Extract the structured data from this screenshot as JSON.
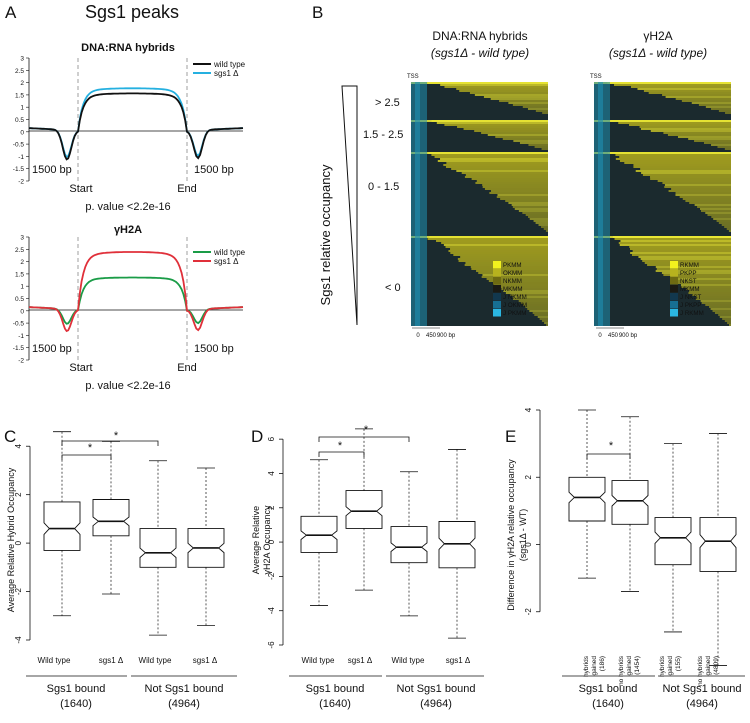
{
  "figure": {
    "panels": {
      "A": {
        "letter": "A",
        "title": "Sgs1 peaks",
        "top": {
          "title": "DNA:RNA hybrids",
          "legend": [
            "wild type",
            "sgs1 Δ"
          ],
          "y_ticks": [
            "3",
            "2.5",
            "2",
            "1.5",
            "1",
            "0.5",
            "0",
            "-0.5",
            "-1",
            "-1.5",
            "-2"
          ],
          "flank_label": "1500 bp",
          "start_label": "Start",
          "end_label": "End",
          "pvalue": "p. value <2.2e-16"
        },
        "bottom": {
          "title": "γH2A",
          "legend": [
            "wild type",
            "sgs1 Δ"
          ],
          "y_ticks": [
            "3",
            "2.5",
            "2",
            "1.5",
            "1",
            "0.5",
            "0",
            "-0.5",
            "-1",
            "-1.5",
            "-2"
          ],
          "flank_label": "1500 bp",
          "start_label": "Start",
          "end_label": "End",
          "pvalue": "p. value <2.2e-16"
        }
      },
      "B": {
        "letter": "B",
        "y_axis_label": "Sgs1 relative occupancy",
        "groups": [
          "> 2.5",
          "1.5 - 2.5",
          "0 - 1.5",
          "< 0"
        ],
        "heatmap1": {
          "title_line1": "DNA:RNA hybrids",
          "title_line2": "(sgs1Δ - wild type)",
          "tss": "TSS",
          "legend": [
            "PKMM",
            "OKMM",
            "NKMM",
            "MKMM",
            "J NKMM",
            "J OKMM",
            "J PKMM"
          ],
          "x_ticks": [
            "0",
            "450",
            "900 bp"
          ]
        },
        "heatmap2": {
          "title_line1": "γH2A",
          "title_line2": "(sgs1Δ - wild type)",
          "tss": "TSS",
          "legend": [
            "RKMM",
            "PKPP",
            "NKST",
            "MKMM",
            "J NKST",
            "J PKPP",
            "J RKMM"
          ],
          "x_ticks": [
            "0",
            "450",
            "900 bp"
          ]
        },
        "legend_colors": [
          "#f2f21e",
          "#b7b21e",
          "#6e6a12",
          "#1a1a14",
          "#12384e",
          "#176f93",
          "#2bb7e3"
        ]
      },
      "C": {
        "letter": "C",
        "y_label": "Average Relative Hybrid Occupancy",
        "star": "*",
        "x_labels": [
          "Wild type",
          "sgs1 Δ",
          "Wild type",
          "sgs1 Δ"
        ],
        "group_labels": [
          "Sgs1 bound",
          "Not Sgs1 bound"
        ],
        "group_counts": [
          "(1640)",
          "(4964)"
        ]
      },
      "D": {
        "letter": "D",
        "y_label_line1": "Average Relative",
        "y_label_line2": "γH2A Occupancy",
        "star": "*",
        "x_labels": [
          "Wild type",
          "sgs1 Δ",
          "Wild type",
          "sgs1 Δ"
        ],
        "group_labels": [
          "Sgs1 bound",
          "Not Sgs1 bound"
        ],
        "group_counts": [
          "(1640)",
          "(4964)"
        ]
      },
      "E": {
        "letter": "E",
        "y_label_line1": "Difference in γH2A relative occupancy",
        "y_label_line2": "(sgs1Δ - WT)",
        "star": "*",
        "box_labels": [
          [
            "hybrids",
            "gained",
            "(186)"
          ],
          [
            "no hybrids",
            "gained",
            "(1454)"
          ],
          [
            "hybrids",
            "gained",
            "(155)"
          ],
          [
            "no hybrids",
            "gained",
            "(4809)"
          ]
        ],
        "group_labels": [
          "Sgs1 bound",
          "Not Sgs1 bound"
        ],
        "group_counts": [
          "(1640)",
          "(4964)"
        ]
      }
    }
  },
  "chart_data": [
    {
      "type": "line",
      "title": "DNA:RNA hybrids",
      "xlabel": "",
      "ylabel": "",
      "ylim": [
        -2,
        3
      ],
      "series": [
        {
          "name": "wild type",
          "color": "#111111",
          "peak": 1.5,
          "dip": -1.2
        },
        {
          "name": "sgs1 Δ",
          "color": "#25b0e0",
          "peak": 1.7,
          "dip": -1.1
        }
      ]
    },
    {
      "type": "line",
      "title": "γH2A",
      "xlabel": "",
      "ylabel": "",
      "ylim": [
        -2,
        3
      ],
      "series": [
        {
          "name": "wild type",
          "color": "#1a9c47",
          "peak": 1.3,
          "dip": -0.6
        },
        {
          "name": "sgs1 Δ",
          "color": "#e0303a",
          "peak": 2.3,
          "dip": -0.9
        }
      ]
    },
    {
      "type": "box",
      "title": "C",
      "ylabel": "Average Relative Hybrid Occupancy",
      "ylim": [
        -4,
        5
      ],
      "y_ticks": [
        -4,
        -2,
        0,
        2,
        4
      ],
      "categories": [
        "Wild type",
        "sgs1 Δ",
        "Wild type",
        "sgs1 Δ"
      ],
      "boxes": [
        {
          "min": -3.0,
          "q1": -0.3,
          "median": 0.6,
          "q3": 1.7,
          "max": 4.6
        },
        {
          "min": -2.1,
          "q1": 0.3,
          "median": 0.9,
          "q3": 1.8,
          "max": 4.2
        },
        {
          "min": -3.8,
          "q1": -1.0,
          "median": -0.4,
          "q3": 0.6,
          "max": 3.4
        },
        {
          "min": -3.4,
          "q1": -1.0,
          "median": -0.2,
          "q3": 0.6,
          "max": 3.1
        }
      ],
      "significance": [
        [
          0,
          1
        ],
        [
          0,
          2
        ]
      ]
    },
    {
      "type": "box",
      "title": "D",
      "ylabel": "Average Relative γH2A Occupancy",
      "ylim": [
        -6,
        7
      ],
      "y_ticks": [
        -6,
        -4,
        -2,
        0,
        2,
        4,
        6
      ],
      "categories": [
        "Wild type",
        "sgs1 Δ",
        "Wild type",
        "sgs1 Δ"
      ],
      "boxes": [
        {
          "min": -3.7,
          "q1": -0.6,
          "median": 0.4,
          "q3": 1.5,
          "max": 4.8
        },
        {
          "min": -2.8,
          "q1": 0.8,
          "median": 1.8,
          "q3": 3.0,
          "max": 6.6
        },
        {
          "min": -4.3,
          "q1": -1.2,
          "median": -0.3,
          "q3": 0.9,
          "max": 4.1
        },
        {
          "min": -5.6,
          "q1": -1.5,
          "median": -0.1,
          "q3": 1.2,
          "max": 5.4
        }
      ],
      "significance": [
        [
          0,
          1
        ],
        [
          0,
          2
        ]
      ]
    },
    {
      "type": "box",
      "title": "E",
      "ylabel": "Difference in γH2A relative occupancy (sgs1Δ - WT)",
      "ylim": [
        -4,
        4
      ],
      "y_ticks": [
        -2,
        0,
        2,
        4
      ],
      "categories": [
        "hybrids gained (186)",
        "no hybrids gained (1454)",
        "hybrids gained (155)",
        "no hybrids gained (4809)"
      ],
      "boxes": [
        {
          "min": -1.0,
          "q1": 0.7,
          "median": 1.4,
          "q3": 2.0,
          "max": 4.0
        },
        {
          "min": -1.4,
          "q1": 0.6,
          "median": 1.3,
          "q3": 1.9,
          "max": 3.8
        },
        {
          "min": -2.6,
          "q1": -0.6,
          "median": 0.2,
          "q3": 0.8,
          "max": 3.0
        },
        {
          "min": -3.6,
          "q1": -0.8,
          "median": 0.1,
          "q3": 0.8,
          "max": 3.3
        }
      ],
      "significance": [
        [
          0,
          1
        ]
      ]
    }
  ]
}
